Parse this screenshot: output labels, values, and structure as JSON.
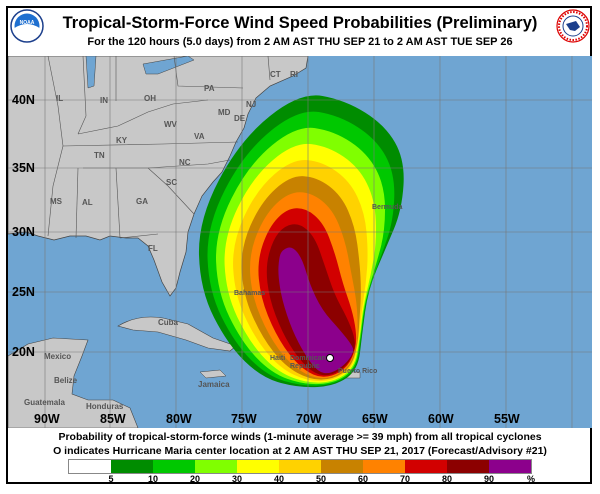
{
  "header": {
    "title": "Tropical-Storm-Force Wind Speed Probabilities (Preliminary)",
    "subtitle": "For the 120 hours (5.0 days) from 2 AM AST THU SEP 21 to 2 AM AST TUE SEP 26",
    "left_logo": "NOAA",
    "right_logo": "NATIONAL WEATHER SERVICE"
  },
  "map": {
    "lat_labels": [
      "40N",
      "35N",
      "30N",
      "25N",
      "20N"
    ],
    "lon_labels": [
      "90W",
      "85W",
      "80W",
      "75W",
      "70W",
      "65W",
      "60W",
      "55W"
    ],
    "labels": [
      "IL",
      "IN",
      "OH",
      "PA",
      "CT",
      "RI",
      "NJ",
      "MD",
      "DE",
      "WV",
      "VA",
      "KY",
      "TN",
      "NC",
      "SC",
      "MS",
      "AL",
      "GA",
      "FL",
      "Bermuda",
      "Bahamas",
      "Cuba",
      "Mexico",
      "Belize",
      "Guatemala",
      "Honduras",
      "Jamaica",
      "Haiti",
      "Dominican Republic",
      "Puerto Rico"
    ],
    "storm_center": "Hurricane Maria",
    "colors": {
      "ocean": "#6fa5d2",
      "land": "#c8c8c8",
      "border": "#555555"
    }
  },
  "caption": {
    "line1": "Probability of tropical-storm-force winds (1-minute average >= 39 mph) from all tropical cyclones",
    "line2": "O indicates Hurricane Maria center location at 2 AM AST THU SEP 21, 2017 (Forecast/Advisory #21)"
  },
  "legend": {
    "ticks": [
      "5",
      "10",
      "20",
      "30",
      "40",
      "50",
      "60",
      "70",
      "80",
      "90",
      "%"
    ],
    "colors": [
      "#ffffff",
      "#008c00",
      "#00c800",
      "#80ff00",
      "#ffff00",
      "#ffd200",
      "#c88200",
      "#ff8200",
      "#d20000",
      "#8c0000",
      "#8c008c"
    ]
  }
}
